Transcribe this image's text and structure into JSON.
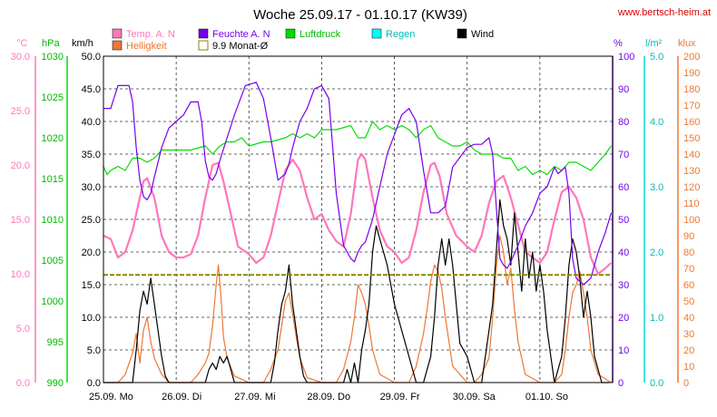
{
  "title": "Woche 25.09.17 - 01.10.17 (KW39)",
  "website": "www.bertsch-heim.at",
  "colors": {
    "temp": "#ff77bb",
    "hum": "#7700ee",
    "press": "#00dd00",
    "rain": "#00dddd",
    "wind": "#000000",
    "light": "#ee7733",
    "avg": "#888800",
    "grid": "#333333",
    "website": "#dd0000"
  },
  "axes": {
    "temp": {
      "unit": "°C",
      "ticks": [
        "0.0",
        "5.0",
        "10.0",
        "15.0",
        "20.0",
        "25.0",
        "30.0"
      ],
      "range": [
        0,
        30
      ]
    },
    "press": {
      "unit": "hPa",
      "ticks": [
        "990",
        "995",
        "1000",
        "1005",
        "1010",
        "1015",
        "1020",
        "1025",
        "1030"
      ],
      "range": [
        990,
        1030
      ]
    },
    "wind": {
      "unit": "km/h",
      "ticks": [
        "0.0",
        "5.0",
        "10.0",
        "15.0",
        "20.0",
        "25.0",
        "30.0",
        "35.0",
        "40.0",
        "45.0",
        "50.0"
      ],
      "range": [
        0,
        50
      ]
    },
    "hum": {
      "unit": "%",
      "ticks": [
        "0",
        "10",
        "20",
        "30",
        "40",
        "50",
        "60",
        "70",
        "80",
        "90",
        "100"
      ],
      "range": [
        0,
        100
      ]
    },
    "rain": {
      "unit": "l/m²",
      "ticks": [
        "0.0",
        "1.0",
        "2.0",
        "3.0",
        "4.0",
        "5.0"
      ],
      "range": [
        0,
        5
      ]
    },
    "light": {
      "unit": "klux",
      "ticks": [
        "0",
        "10",
        "20",
        "30",
        "40",
        "50",
        "60",
        "70",
        "80",
        "90",
        "100",
        "110",
        "120",
        "130",
        "140",
        "150",
        "160",
        "170",
        "180",
        "190",
        "200"
      ],
      "range": [
        0,
        200
      ]
    }
  },
  "x_labels": [
    "25.09.  Mo",
    "26.09.  Di",
    "27.09.  Mi",
    "28.09.  Do",
    "29.09.  Fr",
    "30.09.  Sa",
    "01.10.  So"
  ],
  "legend": {
    "temp": "Temp. A. N",
    "hum": "Feuchte A. N",
    "press": "Luftdruck",
    "rain": "Regen",
    "wind": "Wind",
    "light": "Helligkeit",
    "avg": "9.9 Monat-Ø"
  },
  "chart_data": {
    "type": "line",
    "title": "Woche 25.09.17 - 01.10.17 (KW39)",
    "x_unit": "days since 25.09. 00:00",
    "x_range": [
      0,
      7
    ],
    "monthly_avg_temp": 9.9,
    "series": [
      {
        "name": "Temp. A. N",
        "axis": "temp",
        "x": [
          0,
          0.1,
          0.2,
          0.3,
          0.4,
          0.5,
          0.55,
          0.6,
          0.7,
          0.8,
          0.9,
          1.0,
          1.1,
          1.2,
          1.3,
          1.4,
          1.5,
          1.58,
          1.65,
          1.75,
          1.85,
          2.0,
          2.1,
          2.2,
          2.3,
          2.4,
          2.5,
          2.6,
          2.7,
          2.8,
          2.9,
          3.0,
          3.1,
          3.2,
          3.3,
          3.4,
          3.5,
          3.55,
          3.6,
          3.7,
          3.8,
          3.9,
          4.0,
          4.1,
          4.2,
          4.3,
          4.4,
          4.5,
          4.55,
          4.62,
          4.72,
          4.85,
          5.0,
          5.1,
          5.2,
          5.3,
          5.4,
          5.5,
          5.6,
          5.7,
          5.8,
          5.9,
          6.0,
          6.1,
          6.2,
          6.3,
          6.4,
          6.5,
          6.6,
          6.7,
          6.8,
          6.9,
          6.98
        ],
        "values": [
          13.5,
          13.2,
          11.5,
          12.0,
          14.0,
          17.0,
          18.5,
          18.8,
          17.0,
          13.5,
          12.0,
          11.5,
          11.5,
          11.8,
          13.5,
          17.0,
          20.0,
          20.2,
          18.5,
          15.5,
          12.5,
          11.8,
          11.0,
          11.5,
          13.5,
          16.5,
          19.5,
          20.5,
          19.5,
          17.0,
          15.0,
          15.5,
          14.0,
          13.0,
          12.5,
          15.5,
          20.5,
          21.0,
          20.5,
          17.0,
          14.0,
          12.5,
          12.0,
          11.0,
          11.5,
          14.0,
          17.5,
          20.0,
          20.2,
          19.0,
          15.5,
          13.5,
          12.5,
          12.0,
          13.5,
          16.5,
          18.5,
          19.0,
          17.0,
          14.5,
          12.0,
          11.5,
          11.0,
          12.0,
          15.0,
          17.5,
          18.0,
          17.0,
          15.0,
          11.5,
          10.0,
          10.5,
          11.0
        ]
      },
      {
        "name": "Feuchte A. N",
        "axis": "hum",
        "x": [
          0,
          0.1,
          0.2,
          0.35,
          0.4,
          0.45,
          0.5,
          0.55,
          0.6,
          0.65,
          0.7,
          0.8,
          0.9,
          1.0,
          1.1,
          1.2,
          1.3,
          1.35,
          1.4,
          1.45,
          1.5,
          1.55,
          1.6,
          1.7,
          1.8,
          1.95,
          2.1,
          2.2,
          2.3,
          2.4,
          2.5,
          2.55,
          2.6,
          2.7,
          2.8,
          2.9,
          3.0,
          3.1,
          3.2,
          3.3,
          3.4,
          3.45,
          3.5,
          3.55,
          3.6,
          3.7,
          3.8,
          3.9,
          4.0,
          4.1,
          4.2,
          4.3,
          4.4,
          4.5,
          4.6,
          4.7,
          4.8,
          4.9,
          5.0,
          5.1,
          5.2,
          5.3,
          5.35,
          5.4,
          5.45,
          5.5,
          5.55,
          5.6,
          5.7,
          5.8,
          5.9,
          6.0,
          6.1,
          6.2,
          6.25,
          6.3,
          6.35,
          6.4,
          6.45,
          6.5,
          6.6,
          6.7,
          6.8,
          6.9,
          6.98
        ],
        "values": [
          84,
          84,
          91,
          91,
          86,
          72,
          62,
          57,
          56,
          58,
          63,
          72,
          78,
          80,
          82,
          86,
          86,
          80,
          68,
          63,
          62,
          64,
          68,
          75,
          82,
          91,
          92,
          87,
          75,
          62,
          64,
          67,
          72,
          80,
          84,
          90,
          91,
          87,
          58,
          42,
          38,
          37,
          40,
          42,
          43,
          50,
          60,
          70,
          76,
          82,
          84,
          80,
          65,
          52,
          52,
          54,
          66,
          69,
          72,
          73,
          73,
          75,
          70,
          54,
          38,
          36,
          35,
          37,
          42,
          48,
          52,
          58,
          60,
          66,
          64,
          65,
          66,
          58,
          38,
          32,
          30,
          32,
          40,
          46,
          52
        ]
      },
      {
        "name": "Luftdruck",
        "axis": "press",
        "x": [
          0,
          0.05,
          0.1,
          0.2,
          0.3,
          0.4,
          0.5,
          0.6,
          0.7,
          0.8,
          0.9,
          1.0,
          1.2,
          1.4,
          1.5,
          1.6,
          1.7,
          1.8,
          1.9,
          2.0,
          2.2,
          2.3,
          2.5,
          2.6,
          2.7,
          2.8,
          2.9,
          3.0,
          3.2,
          3.4,
          3.5,
          3.6,
          3.7,
          3.8,
          3.9,
          4.0,
          4.1,
          4.2,
          4.3,
          4.4,
          4.5,
          4.6,
          4.8,
          4.9,
          5.0,
          5.1,
          5.2,
          5.3,
          5.4,
          5.5,
          5.6,
          5.7,
          5.8,
          5.9,
          6.0,
          6.1,
          6.2,
          6.3,
          6.4,
          6.5,
          6.6,
          6.7,
          6.8,
          6.9,
          6.98
        ],
        "values": [
          1016.5,
          1015.5,
          1016.0,
          1016.5,
          1016.0,
          1017.5,
          1017.5,
          1017.0,
          1017.5,
          1018.5,
          1018.5,
          1018.5,
          1018.5,
          1019.0,
          1018.0,
          1019.0,
          1019.5,
          1019.5,
          1020.0,
          1019.0,
          1019.5,
          1019.5,
          1020.0,
          1020.5,
          1020.0,
          1020.5,
          1020.0,
          1021.0,
          1021.0,
          1021.5,
          1020.0,
          1020.0,
          1022.0,
          1021.0,
          1021.5,
          1021.0,
          1021.5,
          1021.0,
          1020.0,
          1021.0,
          1021.5,
          1020.0,
          1019.0,
          1019.0,
          1019.5,
          1018.5,
          1018.0,
          1018.0,
          1018.0,
          1017.5,
          1017.5,
          1016.0,
          1016.5,
          1015.5,
          1016.0,
          1015.5,
          1016.5,
          1016.0,
          1017.0,
          1017.0,
          1016.5,
          1016.0,
          1017.0,
          1018.0,
          1019.0
        ]
      },
      {
        "name": "Wind",
        "axis": "wind",
        "x": [
          0,
          0.4,
          0.45,
          0.5,
          0.55,
          0.6,
          0.65,
          0.7,
          0.75,
          0.8,
          0.85,
          0.9,
          1.0,
          1.4,
          1.45,
          1.5,
          1.55,
          1.6,
          1.65,
          1.7,
          1.75,
          1.8,
          2.0,
          2.3,
          2.35,
          2.4,
          2.45,
          2.5,
          2.55,
          2.6,
          2.65,
          2.7,
          2.75,
          2.8,
          2.85,
          3.0,
          3.2,
          3.3,
          3.35,
          3.4,
          3.45,
          3.5,
          3.55,
          3.6,
          3.65,
          3.7,
          3.75,
          3.8,
          3.9,
          4.0,
          4.3,
          4.4,
          4.5,
          4.55,
          4.6,
          4.65,
          4.7,
          4.75,
          4.8,
          4.85,
          4.9,
          5.0,
          5.1,
          5.2,
          5.3,
          5.35,
          5.4,
          5.45,
          5.5,
          5.55,
          5.6,
          5.65,
          5.7,
          5.75,
          5.8,
          5.85,
          5.9,
          5.95,
          6.0,
          6.05,
          6.1,
          6.15,
          6.2,
          6.3,
          6.35,
          6.4,
          6.45,
          6.5,
          6.55,
          6.6,
          6.65,
          6.7,
          6.75,
          6.8,
          6.85,
          6.95
        ],
        "values": [
          0,
          0,
          5,
          11,
          14,
          12,
          16,
          12,
          8,
          4,
          1,
          0,
          0,
          0,
          2,
          3,
          2,
          4,
          3,
          4,
          2,
          0,
          0,
          0,
          3,
          8,
          12,
          14,
          18,
          12,
          8,
          4,
          1,
          0,
          0,
          0,
          0,
          0,
          2,
          0,
          3,
          0,
          5,
          8,
          12,
          20,
          24,
          22,
          18,
          12,
          0,
          0,
          4,
          10,
          18,
          22,
          18,
          22,
          18,
          12,
          6,
          4,
          0,
          0,
          8,
          12,
          20,
          28,
          24,
          22,
          18,
          26,
          20,
          14,
          22,
          16,
          20,
          14,
          18,
          14,
          8,
          4,
          0,
          4,
          10,
          18,
          22,
          20,
          16,
          10,
          14,
          10,
          4,
          2,
          0,
          0
        ]
      },
      {
        "name": "Helligkeit",
        "axis": "light",
        "x": [
          0,
          0.2,
          0.3,
          0.4,
          0.45,
          0.5,
          0.55,
          0.6,
          0.65,
          0.7,
          0.8,
          0.9,
          1.0,
          1.2,
          1.3,
          1.4,
          1.45,
          1.5,
          1.55,
          1.58,
          1.62,
          1.65,
          1.7,
          1.8,
          2.0,
          2.2,
          2.3,
          2.4,
          2.45,
          2.5,
          2.55,
          2.6,
          2.65,
          2.7,
          2.8,
          3.0,
          3.1,
          3.2,
          3.3,
          3.4,
          3.45,
          3.5,
          3.55,
          3.6,
          3.65,
          3.7,
          3.8,
          4.0,
          4.2,
          4.3,
          4.4,
          4.45,
          4.5,
          4.55,
          4.6,
          4.65,
          4.7,
          4.8,
          5.0,
          5.1,
          5.2,
          5.3,
          5.35,
          5.4,
          5.45,
          5.5,
          5.55,
          5.6,
          5.65,
          5.7,
          5.8,
          6.0,
          6.2,
          6.3,
          6.35,
          6.4,
          6.45,
          6.5,
          6.55,
          6.6,
          6.65,
          6.7,
          6.8,
          6.98
        ],
        "values": [
          0,
          0,
          5,
          18,
          30,
          12,
          32,
          40,
          25,
          15,
          5,
          0,
          0,
          0,
          5,
          12,
          18,
          35,
          60,
          72,
          50,
          28,
          15,
          4,
          0,
          0,
          8,
          20,
          35,
          50,
          55,
          42,
          28,
          15,
          3,
          0,
          0,
          0,
          8,
          25,
          40,
          60,
          55,
          48,
          35,
          20,
          5,
          0,
          0,
          10,
          30,
          45,
          62,
          72,
          68,
          58,
          40,
          10,
          0,
          0,
          5,
          15,
          40,
          70,
          90,
          80,
          60,
          70,
          45,
          25,
          5,
          0,
          0,
          5,
          20,
          40,
          55,
          60,
          68,
          55,
          40,
          20,
          5,
          0
        ]
      }
    ],
    "reference_lines": [
      {
        "name": "9.9 Monat-Ø",
        "axis": "temp",
        "value": 9.9
      }
    ]
  }
}
